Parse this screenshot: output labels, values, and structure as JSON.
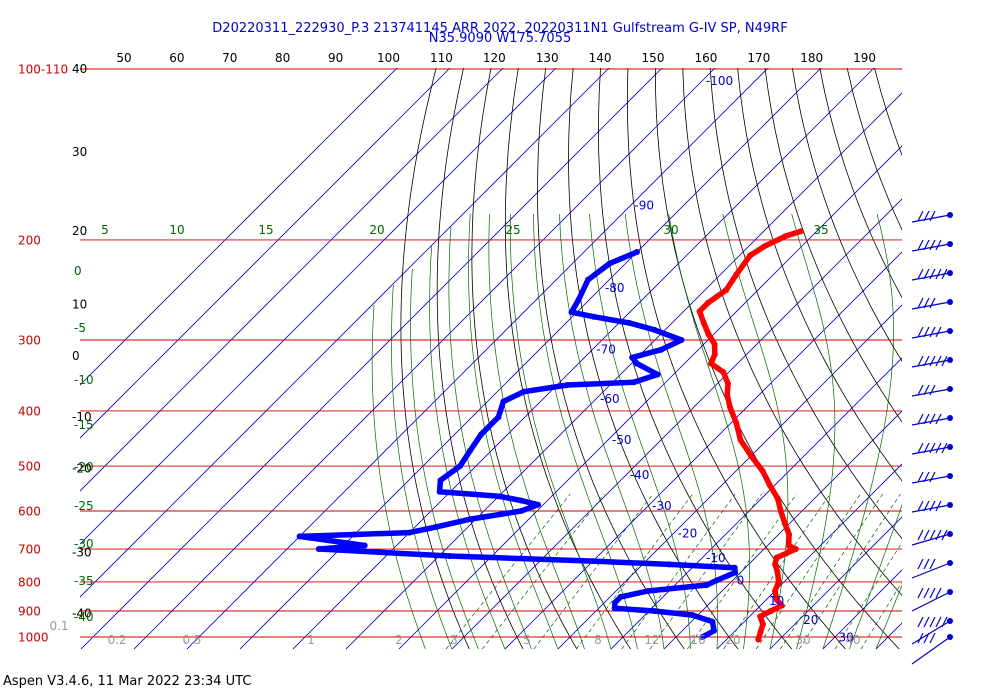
{
  "header": {
    "title_line1": "D20220311_222930_P.3 213741145 ARR 2022, 20220311N1 Gulfstream G-IV SP, N49RF",
    "title_line2": "N35.9090 W175.7055"
  },
  "footer": {
    "version": "Aspen V3.4.6, 11 Mar 2022  23:34 UTC"
  },
  "colors": {
    "isobar": "#cc0000",
    "isotherm": "#0000cc",
    "mixing": "#006600",
    "adiabat": "#000000",
    "temperature": "#ff0000",
    "dewpoint": "#0000ff",
    "barbs": "#0000cc"
  },
  "chart_data": {
    "type": "line",
    "diagram": "skew-T log-P",
    "pressure_labels": [
      {
        "value": 100,
        "text": "100-110"
      },
      {
        "value": 200,
        "text": "200"
      },
      {
        "value": 300,
        "text": "300"
      },
      {
        "value": 400,
        "text": "400"
      },
      {
        "value": 500,
        "text": "500"
      },
      {
        "value": 600,
        "text": "600"
      },
      {
        "value": 700,
        "text": "700"
      },
      {
        "value": 800,
        "text": "800"
      },
      {
        "value": 900,
        "text": "900"
      },
      {
        "value": 1000,
        "text": "1000"
      }
    ],
    "top_ticks": [
      "50",
      "60",
      "70",
      "80",
      "90",
      "100",
      "110",
      "120",
      "130",
      "140",
      "150",
      "160",
      "170",
      "180",
      "190"
    ],
    "left_ticks": [
      {
        "text": "40",
        "p": 100
      },
      {
        "text": "30",
        "p": 140
      },
      {
        "text": "20",
        "p": 193
      },
      {
        "text": "10",
        "p": 260
      },
      {
        "text": "0",
        "p": 320
      },
      {
        "text": "-10",
        "p": 410
      },
      {
        "text": "-20",
        "p": 505
      },
      {
        "text": "-30",
        "p": 710
      },
      {
        "text": "-40",
        "p": 910
      }
    ],
    "isotherm_labels": [
      {
        "text": "-100",
        "t": -100
      },
      {
        "text": "-90",
        "t": -90
      },
      {
        "text": "-80",
        "t": -80
      },
      {
        "text": "-70",
        "t": -70
      },
      {
        "text": "-60",
        "t": -60
      },
      {
        "text": "-50",
        "t": -50
      },
      {
        "text": "-40",
        "t": -40
      },
      {
        "text": "-30",
        "t": -30
      },
      {
        "text": "-20",
        "t": -20
      },
      {
        "text": "-10",
        "t": -10
      },
      {
        "text": "0",
        "t": 0
      },
      {
        "text": "10",
        "t": 10
      },
      {
        "text": "20",
        "t": 20
      },
      {
        "text": "30",
        "t": 30
      }
    ],
    "thetae_labels_top": [
      "5",
      "10",
      "15",
      "20",
      "25",
      "30",
      "35"
    ],
    "thetae_labels_left": [
      "0",
      "-5",
      "-10",
      "-15",
      "-20",
      "-25",
      "-30",
      "-35",
      "-40"
    ],
    "mixing_labels": [
      "0.1",
      "0.2",
      "0.5",
      "1",
      "2",
      "3",
      "5",
      "8",
      "12",
      "16",
      "20",
      "30",
      "40"
    ],
    "temperature": [
      {
        "p": 193,
        "t": -53
      },
      {
        "p": 197,
        "t": -55
      },
      {
        "p": 205,
        "t": -57
      },
      {
        "p": 213,
        "t": -58
      },
      {
        "p": 230,
        "t": -57
      },
      {
        "p": 245,
        "t": -56
      },
      {
        "p": 258,
        "t": -57
      },
      {
        "p": 267,
        "t": -57
      },
      {
        "p": 280,
        "t": -54
      },
      {
        "p": 293,
        "t": -51
      },
      {
        "p": 305,
        "t": -48
      },
      {
        "p": 318,
        "t": -46
      },
      {
        "p": 330,
        "t": -45
      },
      {
        "p": 342,
        "t": -41
      },
      {
        "p": 358,
        "t": -38
      },
      {
        "p": 375,
        "t": -36
      },
      {
        "p": 395,
        "t": -33
      },
      {
        "p": 420,
        "t": -29
      },
      {
        "p": 450,
        "t": -25
      },
      {
        "p": 480,
        "t": -20
      },
      {
        "p": 510,
        "t": -15
      },
      {
        "p": 540,
        "t": -11
      },
      {
        "p": 570,
        "t": -7
      },
      {
        "p": 600,
        "t": -4
      },
      {
        "p": 630,
        "t": -1
      },
      {
        "p": 660,
        "t": 2
      },
      {
        "p": 690,
        "t": 4
      },
      {
        "p": 700,
        "t": 6
      },
      {
        "p": 725,
        "t": 4
      },
      {
        "p": 745,
        "t": 5
      },
      {
        "p": 770,
        "t": 7
      },
      {
        "p": 800,
        "t": 9
      },
      {
        "p": 830,
        "t": 10
      },
      {
        "p": 860,
        "t": 12
      },
      {
        "p": 880,
        "t": 14
      },
      {
        "p": 900,
        "t": 13
      },
      {
        "p": 920,
        "t": 12
      },
      {
        "p": 950,
        "t": 14
      },
      {
        "p": 980,
        "t": 15
      },
      {
        "p": 1010,
        "t": 16
      }
    ],
    "dewpoint": [
      {
        "p": 210,
        "t": -80
      },
      {
        "p": 220,
        "t": -83
      },
      {
        "p": 235,
        "t": -84
      },
      {
        "p": 255,
        "t": -82
      },
      {
        "p": 268,
        "t": -81
      },
      {
        "p": 273,
        "t": -76
      },
      {
        "p": 280,
        "t": -68
      },
      {
        "p": 288,
        "t": -62
      },
      {
        "p": 300,
        "t": -55
      },
      {
        "p": 312,
        "t": -57
      },
      {
        "p": 322,
        "t": -61
      },
      {
        "p": 330,
        "t": -59
      },
      {
        "p": 345,
        "t": -53
      },
      {
        "p": 356,
        "t": -56
      },
      {
        "p": 360,
        "t": -68
      },
      {
        "p": 370,
        "t": -75
      },
      {
        "p": 385,
        "t": -77
      },
      {
        "p": 410,
        "t": -75
      },
      {
        "p": 440,
        "t": -75
      },
      {
        "p": 470,
        "t": -74
      },
      {
        "p": 500,
        "t": -73
      },
      {
        "p": 530,
        "t": -74
      },
      {
        "p": 555,
        "t": -72
      },
      {
        "p": 565,
        "t": -60
      },
      {
        "p": 575,
        "t": -55
      },
      {
        "p": 585,
        "t": -51
      },
      {
        "p": 600,
        "t": -53
      },
      {
        "p": 620,
        "t": -61
      },
      {
        "p": 640,
        "t": -66
      },
      {
        "p": 655,
        "t": -70
      },
      {
        "p": 660,
        "t": -80
      },
      {
        "p": 665,
        "t": -90
      },
      {
        "p": 690,
        "t": -76
      },
      {
        "p": 700,
        "t": -84
      },
      {
        "p": 720,
        "t": -58
      },
      {
        "p": 735,
        "t": -30
      },
      {
        "p": 745,
        "t": -15
      },
      {
        "p": 755,
        "t": -2
      },
      {
        "p": 770,
        "t": -1
      },
      {
        "p": 795,
        "t": -3
      },
      {
        "p": 810,
        "t": -4
      },
      {
        "p": 830,
        "t": -14
      },
      {
        "p": 850,
        "t": -18
      },
      {
        "p": 870,
        "t": -18
      },
      {
        "p": 890,
        "t": -17
      },
      {
        "p": 900,
        "t": -9
      },
      {
        "p": 915,
        "t": -1
      },
      {
        "p": 940,
        "t": 4
      },
      {
        "p": 975,
        "t": 6
      },
      {
        "p": 1000,
        "t": 5
      }
    ]
  }
}
